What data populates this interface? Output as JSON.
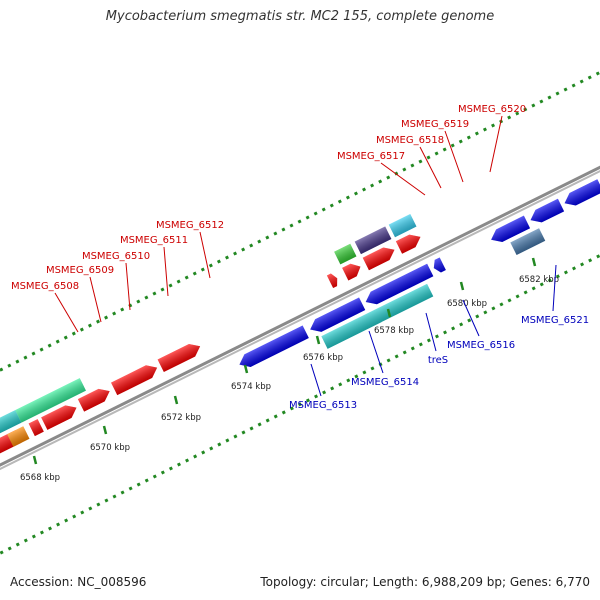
{
  "title": "Mycobacterium smegmatis str. MC2 155, complete genome",
  "footer": {
    "accession": "Accession: NC_008596",
    "topology": "Topology: circular; Length: 6,988,209 bp; Genes: 6,770"
  },
  "ticks": [
    "6568 kbp",
    "6570 kbp",
    "6572 kbp",
    "6574 kbp",
    "6576 kbp",
    "6578 kbp",
    "6580 kbp",
    "6582 kbp"
  ],
  "labels_forward": [
    "MSMEG_6508",
    "MSMEG_6509",
    "MSMEG_6510",
    "MSMEG_6511",
    "MSMEG_6512",
    "MSMEG_6517",
    "MSMEG_6518",
    "MSMEG_6519",
    "MSMEG_6520"
  ],
  "labels_reverse": [
    "MSMEG_6513",
    "MSMEG_6514",
    "treS",
    "MSMEG_6516",
    "MSMEG_6521"
  ],
  "colors": {
    "forward_gene": "#ff0000",
    "reverse_gene": "#0000ee",
    "cyan_feature": "#22cccc",
    "backbone": "#8a8a8a",
    "grid_dot": "#228822",
    "label_forward": "#cc0000",
    "label_reverse": "#0000bb"
  }
}
